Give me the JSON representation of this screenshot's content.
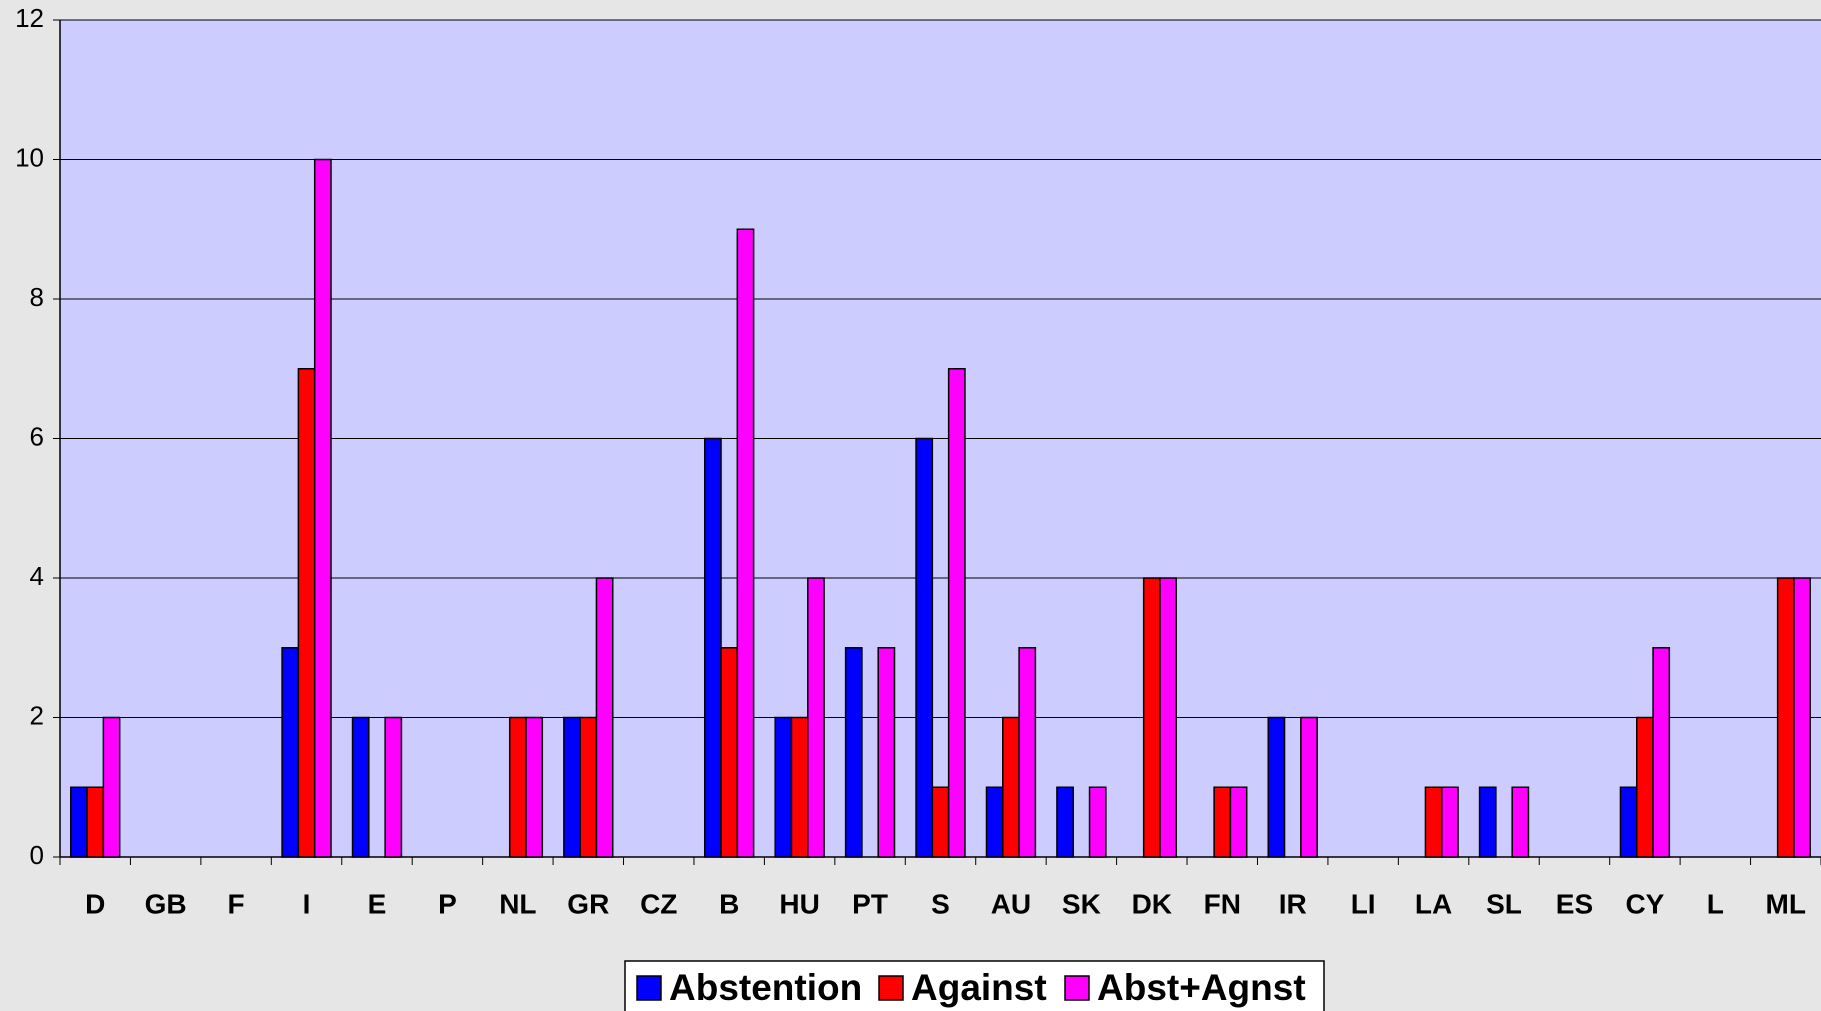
{
  "chart_data": {
    "type": "bar",
    "categories": [
      "D",
      "GB",
      "F",
      "I",
      "E",
      "P",
      "NL",
      "GR",
      "CZ",
      "B",
      "HU",
      "PT",
      "S",
      "AU",
      "SK",
      "DK",
      "FN",
      "IR",
      "LI",
      "LA",
      "SL",
      "ES",
      "CY",
      "L",
      "ML"
    ],
    "series": [
      {
        "name": "Abstention",
        "color": "#0000ff",
        "values": [
          1,
          0,
          0,
          3,
          2,
          0,
          0,
          2,
          0,
          6,
          2,
          3,
          6,
          1,
          1,
          0,
          0,
          2,
          0,
          0,
          1,
          0,
          1,
          0,
          0
        ]
      },
      {
        "name": "Against",
        "color": "#ff0000",
        "values": [
          1,
          0,
          0,
          7,
          0,
          0,
          2,
          2,
          0,
          3,
          2,
          0,
          1,
          2,
          0,
          4,
          1,
          0,
          0,
          1,
          0,
          0,
          2,
          0,
          4
        ]
      },
      {
        "name": "Abst+Agnst",
        "color": "#ff00ff",
        "values": [
          2,
          0,
          0,
          10,
          2,
          0,
          2,
          4,
          0,
          9,
          4,
          3,
          7,
          3,
          1,
          4,
          1,
          2,
          0,
          1,
          1,
          0,
          3,
          0,
          4
        ]
      }
    ],
    "ylim": [
      0,
      12
    ],
    "yticks": [
      0,
      2,
      4,
      6,
      8,
      10,
      12
    ],
    "grid": true,
    "legend": "bottom"
  }
}
